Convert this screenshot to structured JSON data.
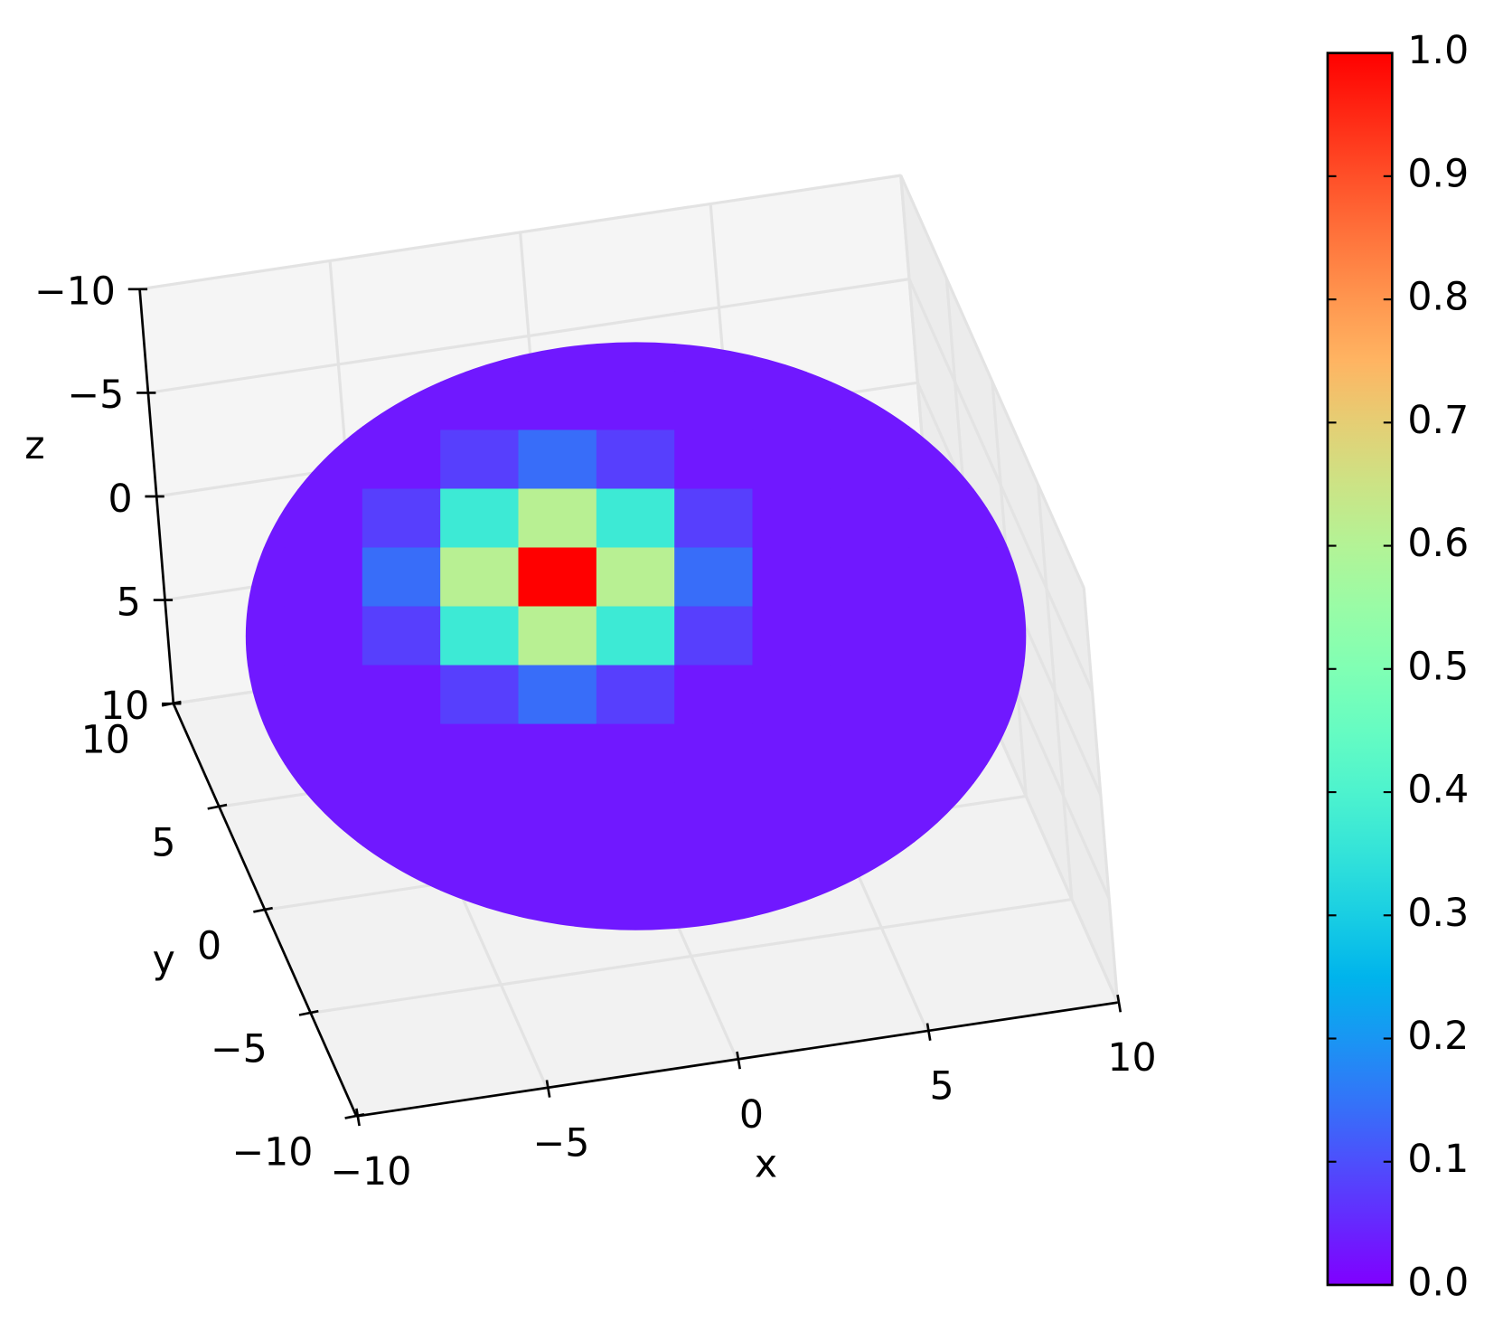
{
  "chart_data": {
    "type": "surface",
    "xlabel": "x",
    "ylabel": "y",
    "zlabel": "z",
    "x": [
      -10,
      -8,
      -6,
      -4,
      -2,
      0,
      2,
      4,
      6,
      8,
      10
    ],
    "y": [
      -10,
      -8,
      -6,
      -4,
      -2,
      0,
      2,
      4,
      6,
      8,
      10
    ],
    "z": [
      [
        0.03,
        0.03,
        0.03,
        0.03,
        0.03,
        0.03,
        0.03,
        0.03,
        0.03,
        0.03,
        0.03
      ],
      [
        0.03,
        0.03,
        0.03,
        0.03,
        0.03,
        0.03,
        0.03,
        0.03,
        0.03,
        0.03,
        0.03
      ],
      [
        0.03,
        0.03,
        0.03,
        0.03,
        0.03,
        0.03,
        0.03,
        0.03,
        0.03,
        0.03,
        0.03
      ],
      [
        0.03,
        0.03,
        0.03,
        0.03,
        0.03,
        0.03,
        0.03,
        0.03,
        0.03,
        0.03,
        0.03
      ],
      [
        0.03,
        0.03,
        0.03,
        0.08,
        0.14,
        0.08,
        0.03,
        0.03,
        0.03,
        0.03,
        0.03
      ],
      [
        0.03,
        0.03,
        0.08,
        0.37,
        0.61,
        0.37,
        0.08,
        0.03,
        0.03,
        0.03,
        0.03
      ],
      [
        0.03,
        0.03,
        0.14,
        0.61,
        1.0,
        0.61,
        0.14,
        0.03,
        0.03,
        0.03,
        0.03
      ],
      [
        0.03,
        0.03,
        0.08,
        0.37,
        0.61,
        0.37,
        0.08,
        0.03,
        0.03,
        0.03,
        0.03
      ],
      [
        0.03,
        0.03,
        0.03,
        0.08,
        0.14,
        0.08,
        0.03,
        0.03,
        0.03,
        0.03,
        0.03
      ],
      [
        0.03,
        0.03,
        0.03,
        0.03,
        0.03,
        0.03,
        0.03,
        0.03,
        0.03,
        0.03,
        0.03
      ],
      [
        0.03,
        0.03,
        0.03,
        0.03,
        0.03,
        0.03,
        0.03,
        0.03,
        0.03,
        0.03,
        0.03
      ]
    ],
    "xlim": [
      -10,
      10
    ],
    "ylim": [
      -10,
      10
    ],
    "zlim": [
      -10,
      10
    ],
    "zinverted": true,
    "xticks": [
      {
        "value": -10,
        "label": "−10"
      },
      {
        "value": -5,
        "label": "−5"
      },
      0,
      5,
      10
    ],
    "yticks": [
      {
        "value": -10,
        "label": "−10"
      },
      {
        "value": -5,
        "label": "−5"
      },
      0,
      5,
      10
    ],
    "zticks": [
      {
        "value": -10,
        "label": "−10"
      },
      {
        "value": -5,
        "label": "−5"
      },
      0,
      5,
      10
    ],
    "grid": true,
    "colormap": "rainbow",
    "colorbar": {
      "lim": [
        0,
        1
      ],
      "ticks": [
        {
          "value": 0,
          "label": "0.0"
        },
        0.1,
        0.2,
        0.3,
        0.4,
        0.5,
        0.6,
        0.7,
        0.8,
        0.9,
        {
          "value": 1,
          "label": "1.0"
        }
      ]
    }
  }
}
